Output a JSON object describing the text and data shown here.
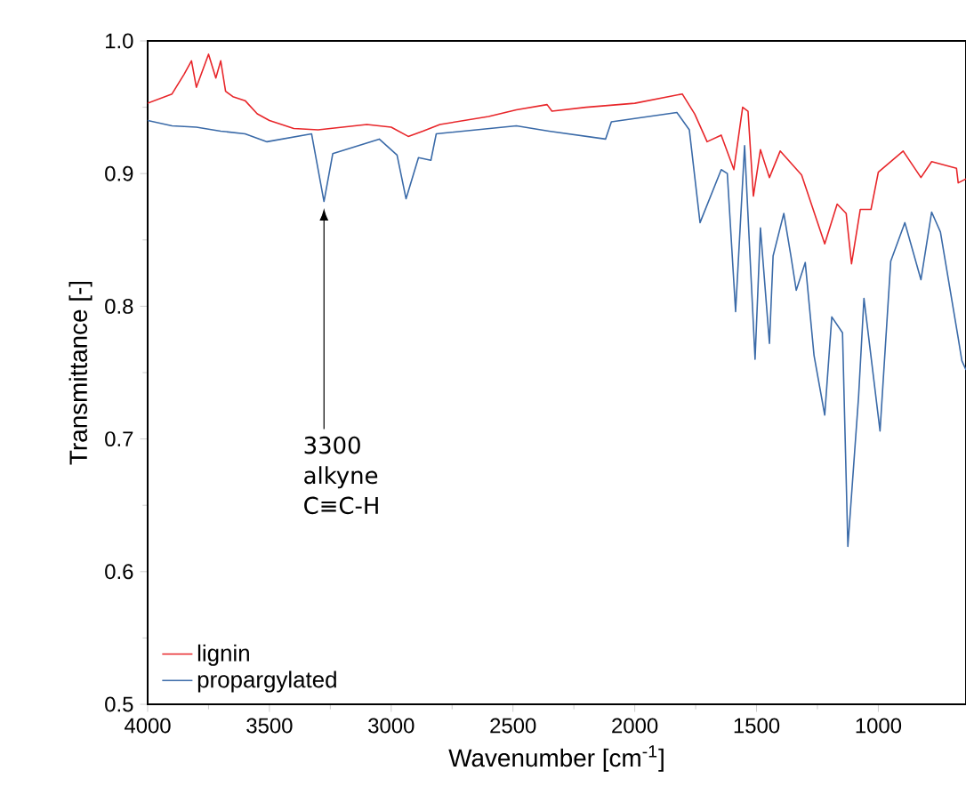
{
  "chart_data": {
    "type": "line",
    "xlabel": "Wavenumber [cm$^{-1}$]",
    "ylabel": "Transmittance [-]",
    "xlim": [
      4000,
      640
    ],
    "ylim": [
      0.5,
      1.0
    ],
    "xticks": [
      4000,
      3500,
      3000,
      2500,
      2000,
      1500,
      1000
    ],
    "yticks": [
      0.5,
      0.6,
      0.7,
      0.8,
      0.9,
      {
        "value": 1,
        "label": "1.0"
      }
    ],
    "legend": "bottom left",
    "grid": false,
    "marker": "none",
    "line_style": "solid",
    "annotations": [
      "3300 alkyne C≡C-H"
    ],
    "series": [
      {
        "name": "lignin",
        "color": "#e8262a",
        "x": [
          4000,
          3900,
          3850,
          3820,
          3800,
          3750,
          3720,
          3700,
          3680,
          3650,
          3600,
          3550,
          3500,
          3400,
          3300,
          3200,
          3100,
          3000,
          2930,
          2870,
          2800,
          2600,
          2486,
          2360,
          2340,
          2200,
          2000,
          1805,
          1754,
          1703,
          1645,
          1593,
          1557,
          1535,
          1513,
          1484,
          1447,
          1403,
          1315,
          1220,
          1169,
          1132,
          1110,
          1074,
          1030,
          1000,
          898,
          825,
          781,
          679,
          672,
          640
        ],
        "values": [
          0.953,
          0.96,
          0.975,
          0.985,
          0.965,
          0.99,
          0.972,
          0.985,
          0.962,
          0.958,
          0.955,
          0.945,
          0.94,
          0.934,
          0.933,
          0.935,
          0.937,
          0.935,
          0.928,
          0.932,
          0.937,
          0.943,
          0.948,
          0.952,
          0.947,
          0.95,
          0.953,
          0.96,
          0.945,
          0.924,
          0.929,
          0.903,
          0.95,
          0.947,
          0.883,
          0.918,
          0.897,
          0.917,
          0.899,
          0.847,
          0.877,
          0.87,
          0.832,
          0.873,
          0.873,
          0.901,
          0.917,
          0.897,
          0.909,
          0.904,
          0.893,
          0.896
        ]
      },
      {
        "name": "propargylated",
        "color": "#3a6aa8",
        "x": [
          4000,
          3900,
          3800,
          3700,
          3600,
          3510,
          3327,
          3276,
          3240,
          3049,
          2976,
          2939,
          2888,
          2837,
          2815,
          2486,
          2352,
          2120,
          2096,
          1827,
          1776,
          1732,
          1645,
          1620,
          1586,
          1549,
          1506,
          1484,
          1447,
          1432,
          1388,
          1359,
          1337,
          1300,
          1264,
          1220,
          1191,
          1147,
          1125,
          1081,
          1059,
          993,
          949,
          891,
          825,
          781,
          745,
          672,
          657,
          640
        ],
        "values": [
          0.94,
          0.936,
          0.935,
          0.932,
          0.93,
          0.924,
          0.93,
          0.879,
          0.915,
          0.926,
          0.914,
          0.881,
          0.912,
          0.91,
          0.93,
          0.936,
          0.932,
          0.926,
          0.939,
          0.946,
          0.933,
          0.863,
          0.903,
          0.9,
          0.796,
          0.921,
          0.76,
          0.859,
          0.772,
          0.838,
          0.87,
          0.838,
          0.812,
          0.833,
          0.763,
          0.718,
          0.792,
          0.78,
          0.619,
          0.732,
          0.806,
          0.706,
          0.834,
          0.863,
          0.82,
          0.871,
          0.856,
          0.776,
          0.759,
          0.752
        ]
      }
    ]
  }
}
